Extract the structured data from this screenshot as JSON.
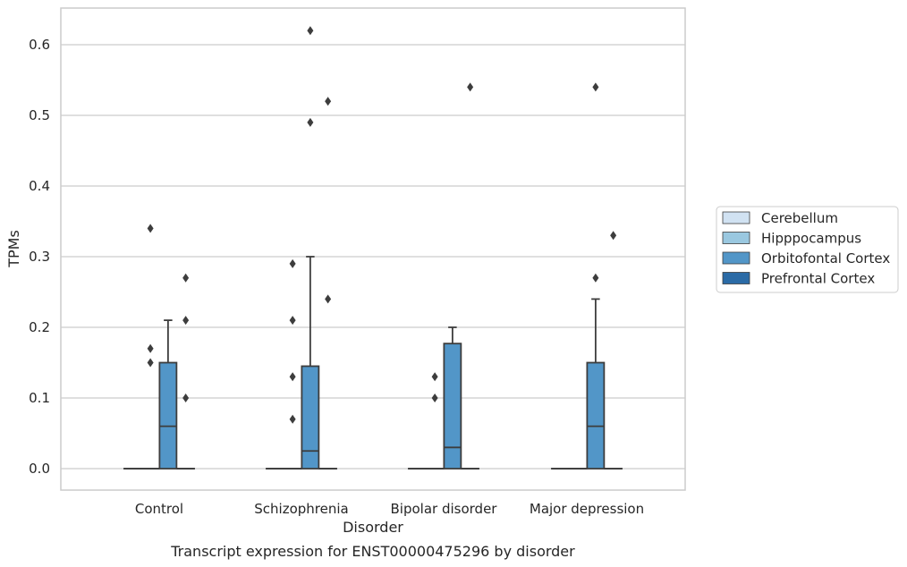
{
  "chart_data": {
    "type": "box",
    "xlabel": "Disorder",
    "ylabel": "TPMs",
    "caption": "Transcript expression for ENST00000475296 by disorder",
    "categories": [
      "Control",
      "Schizophrenia",
      "Bipolar disorder",
      "Major depression"
    ],
    "ylim": [
      -0.03,
      0.65
    ],
    "yticks": [
      "0.0",
      "0.1",
      "0.2",
      "0.3",
      "0.4",
      "0.5",
      "0.6"
    ],
    "grid": true,
    "legend_position": "right",
    "series": [
      {
        "name": "Cerebellum",
        "color": "#d1e2f2",
        "boxes": [
          {
            "q1": 0,
            "median": 0,
            "q3": 0,
            "whisker_low": 0,
            "whisker_high": 0,
            "outliers": []
          },
          {
            "q1": 0,
            "median": 0,
            "q3": 0,
            "whisker_low": 0,
            "whisker_high": 0,
            "outliers": []
          },
          {
            "q1": 0,
            "median": 0,
            "q3": 0,
            "whisker_low": 0,
            "whisker_high": 0,
            "outliers": []
          },
          {
            "q1": 0,
            "median": 0,
            "q3": 0,
            "whisker_low": 0,
            "whisker_high": 0,
            "outliers": []
          }
        ]
      },
      {
        "name": "Hipppocampus",
        "color": "#9ac8e0",
        "boxes": [
          {
            "q1": 0,
            "median": 0,
            "q3": 0,
            "whisker_low": 0,
            "whisker_high": 0,
            "outliers": [
              0.15,
              0.17,
              0.34
            ]
          },
          {
            "q1": 0,
            "median": 0,
            "q3": 0,
            "whisker_low": 0,
            "whisker_high": 0,
            "outliers": [
              0.07,
              0.13,
              0.21,
              0.29
            ]
          },
          {
            "q1": 0,
            "median": 0,
            "q3": 0,
            "whisker_low": 0,
            "whisker_high": 0,
            "outliers": [
              0.1,
              0.13
            ]
          },
          {
            "q1": 0,
            "median": 0,
            "q3": 0,
            "whisker_low": 0,
            "whisker_high": 0,
            "outliers": []
          }
        ]
      },
      {
        "name": "Orbitofontal Cortex",
        "color": "#5296c8",
        "boxes": [
          {
            "q1": 0,
            "median": 0.06,
            "q3": 0.15,
            "whisker_low": 0,
            "whisker_high": 0.21,
            "outliers": []
          },
          {
            "q1": 0,
            "median": 0.025,
            "q3": 0.145,
            "whisker_low": 0,
            "whisker_high": 0.3,
            "outliers": [
              0.49,
              0.62
            ]
          },
          {
            "q1": 0,
            "median": 0.03,
            "q3": 0.177,
            "whisker_low": 0,
            "whisker_high": 0.2,
            "outliers": []
          },
          {
            "q1": 0,
            "median": 0.06,
            "q3": 0.15,
            "whisker_low": 0,
            "whisker_high": 0.24,
            "outliers": [
              0.27,
              0.54
            ]
          }
        ]
      },
      {
        "name": "Prefrontal Cortex",
        "color": "#2b6ba6",
        "boxes": [
          {
            "q1": 0,
            "median": 0,
            "q3": 0,
            "whisker_low": 0,
            "whisker_high": 0,
            "outliers": [
              0.1,
              0.21,
              0.27
            ]
          },
          {
            "q1": 0,
            "median": 0,
            "q3": 0,
            "whisker_low": 0,
            "whisker_high": 0,
            "outliers": [
              0.24,
              0.52
            ]
          },
          {
            "q1": 0,
            "median": 0,
            "q3": 0,
            "whisker_low": 0,
            "whisker_high": 0,
            "outliers": [
              0.54
            ]
          },
          {
            "q1": 0,
            "median": 0,
            "q3": 0,
            "whisker_low": 0,
            "whisker_high": 0,
            "outliers": [
              0.33
            ]
          }
        ]
      }
    ]
  }
}
